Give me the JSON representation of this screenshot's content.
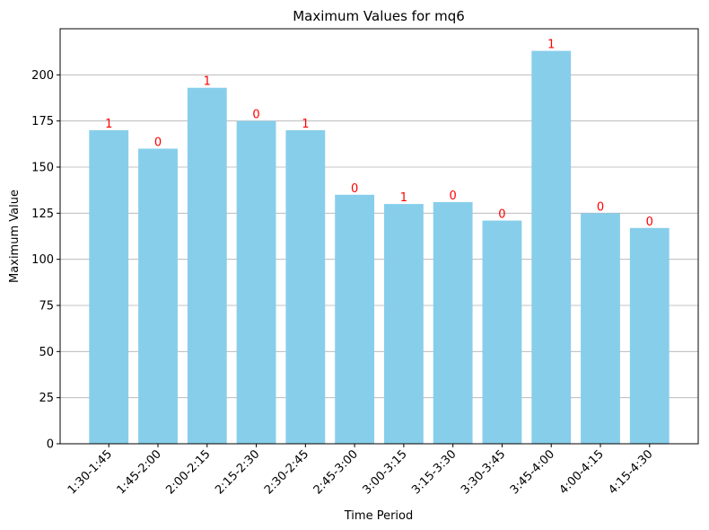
{
  "chart_data": {
    "type": "bar",
    "title": "Maximum Values for mq6",
    "xlabel": "Time Period",
    "ylabel": "Maximum Value",
    "categories": [
      "1:30-1:45",
      "1:45-2:00",
      "2:00-2:15",
      "2:15-2:30",
      "2:30-2:45",
      "2:45-3:00",
      "3:00-3:15",
      "3:15-3:30",
      "3:30-3:45",
      "3:45-4:00",
      "4:00-4:15",
      "4:15-4:30"
    ],
    "values": [
      170,
      160,
      193,
      175,
      170,
      135,
      130,
      131,
      121,
      213,
      125,
      117
    ],
    "bar_labels": [
      "1",
      "0",
      "1",
      "0",
      "1",
      "0",
      "1",
      "0",
      "0",
      "1",
      "0",
      "0"
    ],
    "ylim": [
      0,
      225
    ],
    "yticks": [
      0,
      25,
      50,
      75,
      100,
      125,
      150,
      175,
      200
    ],
    "grid": "y-axis",
    "legend": "none",
    "colors": {
      "bar": "#87CEEB",
      "bar_label": "#FF0000",
      "grid": "#b0b0b0",
      "axis": "#000000"
    }
  }
}
